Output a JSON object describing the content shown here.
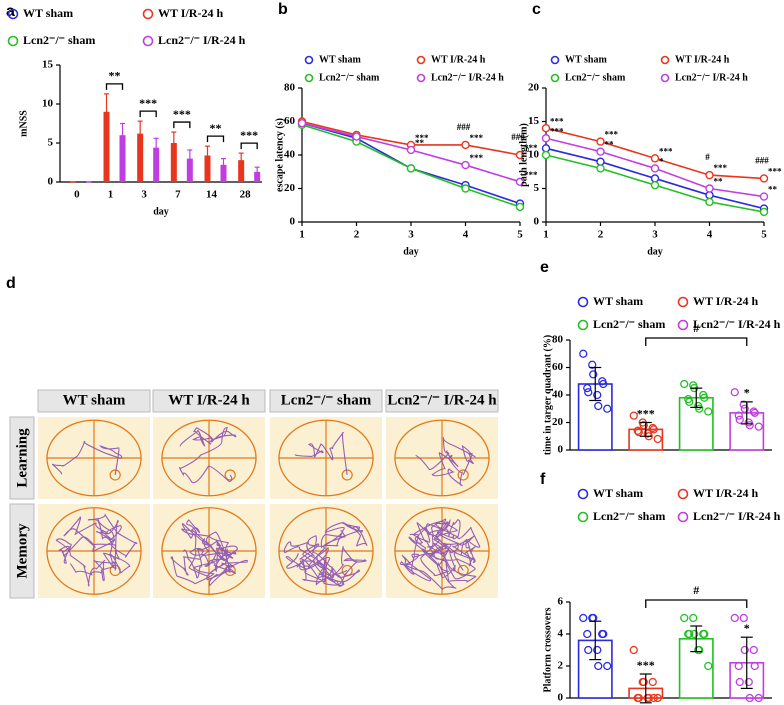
{
  "chart_data": [
    {
      "type": "bar",
      "panel_label": "a",
      "y_label": "mNSS",
      "x_label": "day",
      "categories": [
        "0",
        "1",
        "3",
        "7",
        "14",
        "28"
      ],
      "ylim": [
        0,
        15
      ],
      "yticks": [
        0,
        5,
        10,
        15
      ],
      "filled": true,
      "series": [
        {
          "name": "WT sham",
          "color": "#2a2ae0",
          "values": [
            0,
            0,
            0,
            0,
            0,
            0
          ]
        },
        {
          "name": "WT I/R-24 h",
          "color": "#e8361e",
          "values": [
            0,
            9,
            6.2,
            5,
            3.4,
            2.8
          ],
          "errors": [
            0,
            2.3,
            1.6,
            1.4,
            1.2,
            0.9
          ]
        },
        {
          "name": "Lcn2⁻/⁻ sham",
          "color": "#22c022",
          "values": [
            0,
            0,
            0,
            0,
            0,
            0
          ]
        },
        {
          "name": "Lcn2⁻/⁻ I/R-24 h",
          "color": "#c03ee0",
          "values": [
            0,
            6,
            4.4,
            3,
            2.2,
            1.3
          ],
          "errors": [
            0,
            1.5,
            1.2,
            1.1,
            0.8,
            0.6
          ]
        }
      ],
      "annotations": [
        null,
        "**",
        "***",
        "***",
        "**",
        "***"
      ]
    },
    {
      "type": "line",
      "panel_label": "b",
      "y_label": "escape latency (s)",
      "x_label": "day",
      "x": [
        1,
        2,
        3,
        4,
        5
      ],
      "xlim": [
        1,
        5
      ],
      "xticks": [
        1,
        2,
        3,
        4,
        5
      ],
      "ylim": [
        0,
        80
      ],
      "yticks": [
        0,
        20,
        40,
        60,
        80
      ],
      "series": [
        {
          "name": "WT sham",
          "color": "#2a2ae0",
          "values": [
            59,
            50,
            32,
            22,
            11
          ]
        },
        {
          "name": "WT I/R-24 h",
          "color": "#e8361e",
          "values": [
            60,
            52,
            46,
            46,
            40
          ],
          "sig": [
            null,
            null,
            "***",
            "***",
            "***"
          ],
          "hash": [
            null,
            null,
            null,
            "###",
            "###"
          ]
        },
        {
          "name": "Lcn2⁻/⁻ sham",
          "color": "#22c022",
          "values": [
            58,
            48,
            32,
            20,
            9
          ]
        },
        {
          "name": "Lcn2⁻/⁻ I/R-24 h",
          "color": "#c03ee0",
          "values": [
            59,
            51,
            43,
            34,
            24
          ],
          "sig": [
            null,
            null,
            "**",
            "***",
            "***"
          ]
        }
      ]
    },
    {
      "type": "line",
      "panel_label": "c",
      "y_label": "path length(m)",
      "x_label": "day",
      "x": [
        1,
        2,
        3,
        4,
        5
      ],
      "xlim": [
        1,
        5
      ],
      "xticks": [
        1,
        2,
        3,
        4,
        5
      ],
      "ylim": [
        0,
        20
      ],
      "yticks": [
        0,
        5,
        10,
        15,
        20
      ],
      "series": [
        {
          "name": "WT sham",
          "color": "#2a2ae0",
          "values": [
            11,
            9,
            6.5,
            4,
            2
          ]
        },
        {
          "name": "WT I/R-24 h",
          "color": "#e8361e",
          "values": [
            14,
            12,
            9.5,
            7,
            6.5
          ],
          "sig": [
            "***",
            "***",
            "***",
            "***",
            "***"
          ],
          "hash": [
            null,
            null,
            null,
            "#",
            "###"
          ]
        },
        {
          "name": "Lcn2⁻/⁻ sham",
          "color": "#22c022",
          "values": [
            10,
            8,
            5.5,
            3,
            1.5
          ]
        },
        {
          "name": "Lcn2⁻/⁻ I/R-24 h",
          "color": "#c03ee0",
          "values": [
            12.5,
            10.5,
            8,
            5,
            3.8
          ],
          "sig": [
            "***",
            "**",
            "*",
            "**",
            "**"
          ]
        }
      ]
    },
    {
      "type": "bar",
      "panel_label": "e",
      "y_label": "time in targer quadrant (%)",
      "ylim": [
        0,
        80
      ],
      "yticks": [
        0,
        20,
        40,
        60,
        80
      ],
      "filled": false,
      "series": [
        {
          "name": "WT sham",
          "color": "#2a2ae0",
          "values": [
            48
          ],
          "errors": [
            12
          ],
          "points": [
            70,
            62,
            55,
            50,
            48,
            45,
            42,
            40,
            32,
            30
          ]
        },
        {
          "name": "WT I/R-24 h",
          "color": "#e8361e",
          "values": [
            15
          ],
          "errors": [
            5
          ],
          "points": [
            25,
            20,
            18,
            16,
            15,
            14,
            13,
            12,
            10,
            8
          ]
        },
        {
          "name": "Lcn2⁻/⁻ sham",
          "color": "#22c022",
          "values": [
            38
          ],
          "errors": [
            7
          ],
          "points": [
            48,
            47,
            45,
            40,
            38,
            37,
            35,
            32,
            30,
            28
          ]
        },
        {
          "name": "Lcn2⁻/⁻ I/R-24 h",
          "color": "#c03ee0",
          "values": [
            27
          ],
          "errors": [
            8
          ],
          "points": [
            42,
            33,
            30,
            28,
            27,
            25,
            22,
            20,
            18,
            17
          ]
        }
      ],
      "sig_labels": [
        null,
        "***",
        null,
        "*"
      ],
      "bracket_label": "#"
    },
    {
      "type": "bar",
      "panel_label": "f",
      "y_label": "Platform crossovers",
      "ylim": [
        0,
        6
      ],
      "yticks": [
        0,
        2,
        4,
        6
      ],
      "filled": false,
      "series": [
        {
          "name": "WT sham",
          "color": "#2a2ae0",
          "values": [
            3.6
          ],
          "errors": [
            1.2
          ],
          "points": [
            5,
            5,
            5,
            4,
            4,
            4,
            3,
            3,
            2,
            2
          ]
        },
        {
          "name": "WT I/R-24 h",
          "color": "#e8361e",
          "values": [
            0.6
          ],
          "errors": [
            0.9
          ],
          "points": [
            3,
            1,
            1,
            1,
            0,
            0,
            0,
            0,
            0,
            0
          ]
        },
        {
          "name": "Lcn2⁻/⁻ sham",
          "color": "#22c022",
          "values": [
            3.7
          ],
          "errors": [
            0.8
          ],
          "points": [
            5,
            5,
            4,
            4,
            4,
            4,
            4,
            3,
            3,
            2
          ]
        },
        {
          "name": "Lcn2⁻/⁻ I/R-24 h",
          "color": "#c03ee0",
          "values": [
            2.2
          ],
          "errors": [
            1.6
          ],
          "points": [
            5,
            5,
            3,
            3,
            2,
            2,
            1,
            1,
            0,
            0
          ]
        }
      ],
      "sig_labels": [
        null,
        "***",
        null,
        "*"
      ],
      "bracket_label": "#"
    }
  ],
  "track_panel": {
    "panel_label": "d",
    "columns": [
      "WT sham",
      "WT I/R-24 h",
      "Lcn2⁻/⁻ sham",
      "Lcn2⁻/⁻ I/R-24 h"
    ],
    "rows": [
      "Learning",
      "Memory"
    ]
  }
}
